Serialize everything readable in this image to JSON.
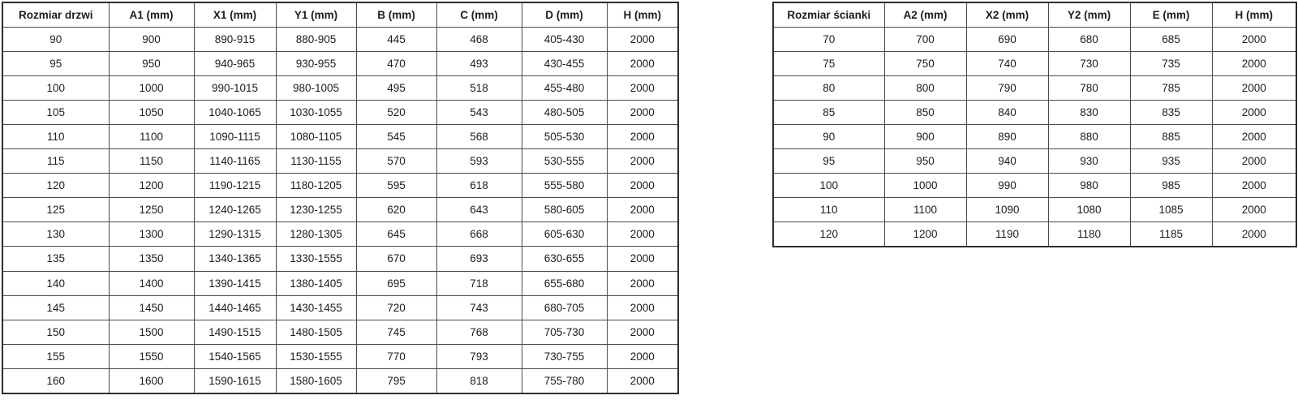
{
  "page": {
    "background_color": "#ffffff",
    "text_color": "#1c1c1c",
    "border_color": "#4a4a4a"
  },
  "door_table": {
    "headers": [
      "Rozmiar drzwi",
      "A1 (mm)",
      "X1 (mm)",
      "Y1 (mm)",
      "B (mm)",
      "C (mm)",
      "D (mm)",
      "H (mm)"
    ],
    "rows": [
      [
        "90",
        "900",
        "890-915",
        "880-905",
        "445",
        "468",
        "405-430",
        "2000"
      ],
      [
        "95",
        "950",
        "940-965",
        "930-955",
        "470",
        "493",
        "430-455",
        "2000"
      ],
      [
        "100",
        "1000",
        "990-1015",
        "980-1005",
        "495",
        "518",
        "455-480",
        "2000"
      ],
      [
        "105",
        "1050",
        "1040-1065",
        "1030-1055",
        "520",
        "543",
        "480-505",
        "2000"
      ],
      [
        "110",
        "1100",
        "1090-1115",
        "1080-1105",
        "545",
        "568",
        "505-530",
        "2000"
      ],
      [
        "115",
        "1150",
        "1140-1165",
        "1130-1155",
        "570",
        "593",
        "530-555",
        "2000"
      ],
      [
        "120",
        "1200",
        "1190-1215",
        "1180-1205",
        "595",
        "618",
        "555-580",
        "2000"
      ],
      [
        "125",
        "1250",
        "1240-1265",
        "1230-1255",
        "620",
        "643",
        "580-605",
        "2000"
      ],
      [
        "130",
        "1300",
        "1290-1315",
        "1280-1305",
        "645",
        "668",
        "605-630",
        "2000"
      ],
      [
        "135",
        "1350",
        "1340-1365",
        "1330-1555",
        "670",
        "693",
        "630-655",
        "2000"
      ],
      [
        "140",
        "1400",
        "1390-1415",
        "1380-1405",
        "695",
        "718",
        "655-680",
        "2000"
      ],
      [
        "145",
        "1450",
        "1440-1465",
        "1430-1455",
        "720",
        "743",
        "680-705",
        "2000"
      ],
      [
        "150",
        "1500",
        "1490-1515",
        "1480-1505",
        "745",
        "768",
        "705-730",
        "2000"
      ],
      [
        "155",
        "1550",
        "1540-1565",
        "1530-1555",
        "770",
        "793",
        "730-755",
        "2000"
      ],
      [
        "160",
        "1600",
        "1590-1615",
        "1580-1605",
        "795",
        "818",
        "755-780",
        "2000"
      ]
    ]
  },
  "wall_table": {
    "headers": [
      "Rozmiar ścianki",
      "A2 (mm)",
      "X2 (mm)",
      "Y2 (mm)",
      "E (mm)",
      "H (mm)"
    ],
    "rows": [
      [
        "70",
        "700",
        "690",
        "680",
        "685",
        "2000"
      ],
      [
        "75",
        "750",
        "740",
        "730",
        "735",
        "2000"
      ],
      [
        "80",
        "800",
        "790",
        "780",
        "785",
        "2000"
      ],
      [
        "85",
        "850",
        "840",
        "830",
        "835",
        "2000"
      ],
      [
        "90",
        "900",
        "890",
        "880",
        "885",
        "2000"
      ],
      [
        "95",
        "950",
        "940",
        "930",
        "935",
        "2000"
      ],
      [
        "100",
        "1000",
        "990",
        "980",
        "985",
        "2000"
      ],
      [
        "110",
        "1100",
        "1090",
        "1080",
        "1085",
        "2000"
      ],
      [
        "120",
        "1200",
        "1190",
        "1180",
        "1185",
        "2000"
      ]
    ]
  }
}
